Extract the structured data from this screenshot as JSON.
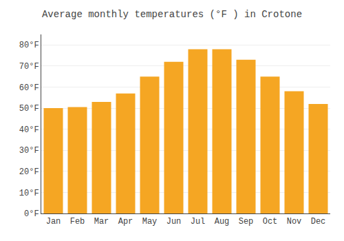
{
  "chart_data": {
    "type": "bar",
    "title": "Average monthly temperatures (°F ) in Crotone",
    "categories": [
      "Jan",
      "Feb",
      "Mar",
      "Apr",
      "May",
      "Jun",
      "Jul",
      "Aug",
      "Sep",
      "Oct",
      "Nov",
      "Dec"
    ],
    "values": [
      50,
      50.5,
      53,
      57,
      65,
      72,
      78,
      78,
      73,
      65,
      58,
      52
    ],
    "color": "#F5A623",
    "ylim": [
      0,
      85
    ],
    "yticks": [
      {
        "value": 0,
        "label": "0°F"
      },
      {
        "value": 10,
        "label": "10°F"
      },
      {
        "value": 20,
        "label": "20°F"
      },
      {
        "value": 30,
        "label": "30°F"
      },
      {
        "value": 40,
        "label": "40°F"
      },
      {
        "value": 50,
        "label": "50°F"
      },
      {
        "value": 60,
        "label": "60°F"
      },
      {
        "value": 70,
        "label": "70°F"
      },
      {
        "value": 80,
        "label": "80°F"
      }
    ],
    "grid": true
  }
}
